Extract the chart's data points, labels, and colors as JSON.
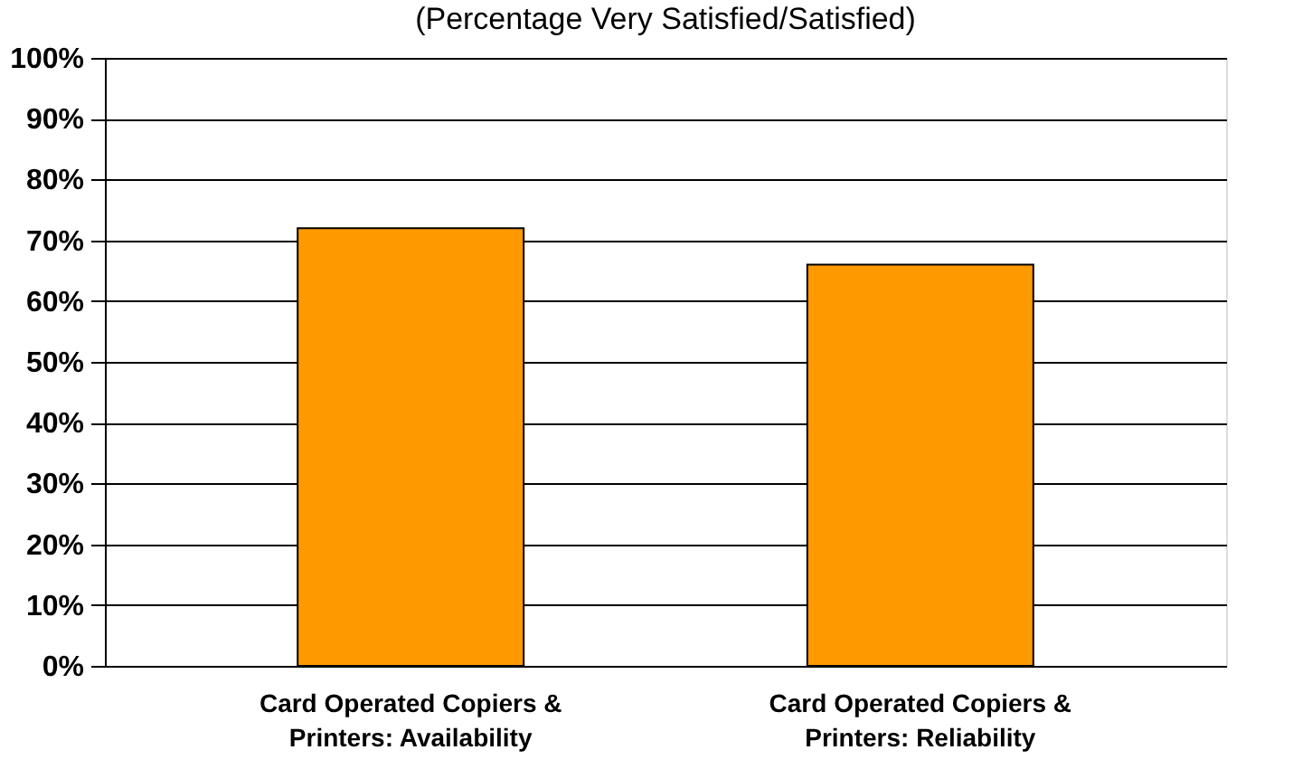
{
  "chart_data": {
    "type": "bar",
    "subtitle": "(Percentage Very Satisfied/Satisfied)",
    "categories": [
      "Card Operated Copiers & Printers: Availability",
      "Card Operated Copiers & Printers: Reliability"
    ],
    "values": [
      72,
      66
    ],
    "color": "#ff9900",
    "ylim": [
      0,
      100
    ],
    "yticks": [
      {
        "value": 0,
        "label": "0%"
      },
      {
        "value": 10,
        "label": "10%"
      },
      {
        "value": 20,
        "label": "20%"
      },
      {
        "value": 30,
        "label": "30%"
      },
      {
        "value": 40,
        "label": "40%"
      },
      {
        "value": 50,
        "label": "50%"
      },
      {
        "value": 60,
        "label": "60%"
      },
      {
        "value": 70,
        "label": "70%"
      },
      {
        "value": 80,
        "label": "80%"
      },
      {
        "value": 90,
        "label": "90%"
      },
      {
        "value": 100,
        "label": "100%"
      }
    ],
    "grid": "y"
  }
}
